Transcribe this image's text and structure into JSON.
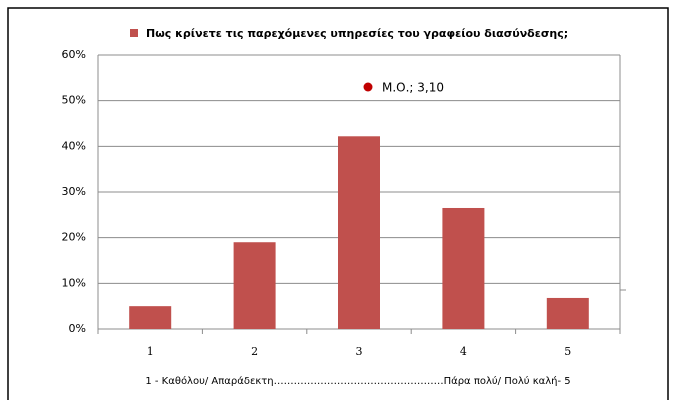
{
  "chart_data": {
    "type": "bar",
    "series": [
      {
        "name": "Πως κρίνετε τις παρεχόμενες υπηρεσίες του γραφείου διασύνδεσης;",
        "color": "#c0504d",
        "values": [
          5.0,
          19.0,
          42.2,
          26.5,
          6.8
        ]
      }
    ],
    "categories": [
      "1",
      "2",
      "3",
      "4",
      "5"
    ],
    "x_label": "1 -  Καθόλου/ Απαράδεκτη……………………………………………Πάρα  πολύ/ Πολύ καλή- 5",
    "annotation": {
      "text": "Μ.Ο.; 3,10",
      "color": "#c00000"
    },
    "ylim": [
      0,
      60
    ],
    "yticks": [
      {
        "value": 0,
        "label": "0%"
      },
      {
        "value": 10,
        "label": "10%"
      },
      {
        "value": 20,
        "label": "20%"
      },
      {
        "value": 30,
        "label": "30%"
      },
      {
        "value": 40,
        "label": "40%"
      },
      {
        "value": 50,
        "label": "50%"
      },
      {
        "value": 60,
        "label": "60%"
      }
    ],
    "grid": true
  }
}
